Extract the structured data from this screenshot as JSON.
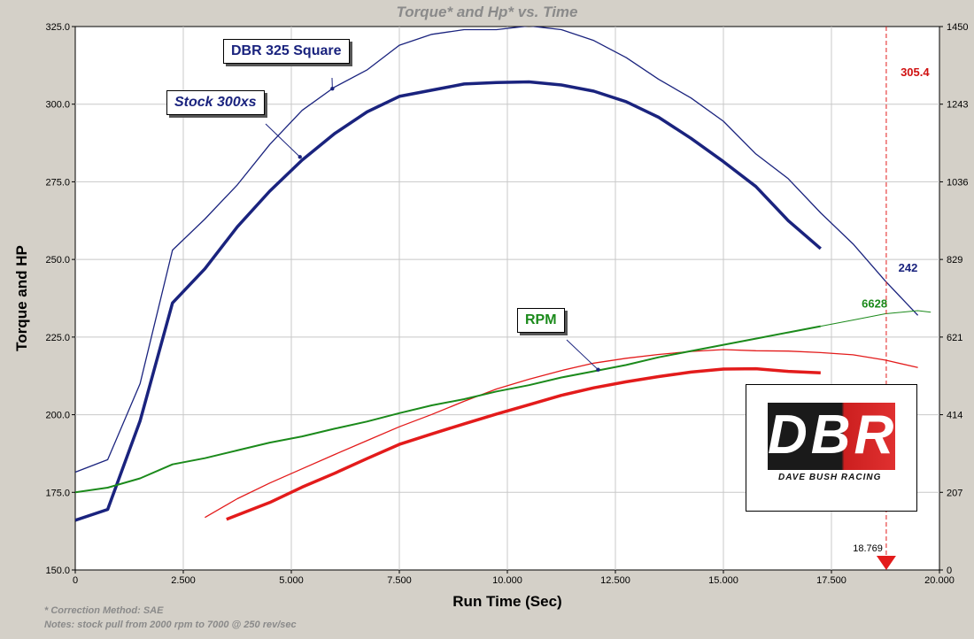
{
  "chart_data": {
    "type": "line",
    "title": "Torque* and Hp* vs. Time",
    "xlabel": "Run Time (Sec)",
    "ylabel": "Torque and HP",
    "xlim": [
      0,
      20
    ],
    "ylim": [
      150,
      325
    ],
    "y2lim": [
      0,
      1450
    ],
    "x_ticks": [
      "0",
      "2.500",
      "5.000",
      "7.500",
      "10.000",
      "12.500",
      "15.000",
      "17.500",
      "20.000"
    ],
    "y_ticks": [
      "150.0",
      "175.0",
      "200.0",
      "225.0",
      "250.0",
      "275.0",
      "300.0",
      "325.0"
    ],
    "y2_ticks": [
      "0",
      "207",
      "414",
      "621",
      "829",
      "1036",
      "1243",
      "1450"
    ],
    "grid": true,
    "series": [
      {
        "name": "DBR 325 Square",
        "kind": "torque",
        "color": "#1a237e",
        "width": 1.3,
        "points": [
          [
            0,
            181.5
          ],
          [
            0.75,
            185.5
          ],
          [
            1.5,
            210
          ],
          [
            2.25,
            253
          ],
          [
            3,
            263
          ],
          [
            3.75,
            274
          ],
          [
            4.5,
            287
          ],
          [
            5.25,
            298
          ],
          [
            6,
            305.5
          ],
          [
            6.75,
            311
          ],
          [
            7.5,
            319
          ],
          [
            8.25,
            322.5
          ],
          [
            9,
            324
          ],
          [
            9.75,
            324
          ],
          [
            10.5,
            325.2
          ],
          [
            11.25,
            324
          ],
          [
            12,
            320.5
          ],
          [
            12.75,
            315
          ],
          [
            13.5,
            308
          ],
          [
            14.25,
            302
          ],
          [
            15,
            294.5
          ],
          [
            15.75,
            284
          ],
          [
            16.5,
            276
          ],
          [
            17.25,
            265
          ],
          [
            18,
            255
          ],
          [
            18.75,
            243
          ],
          [
            19.5,
            232
          ]
        ]
      },
      {
        "name": "Stock 300xs",
        "kind": "torque",
        "color": "#1a237e",
        "width": 3.5,
        "points": [
          [
            0,
            166
          ],
          [
            0.75,
            169.5
          ],
          [
            1.5,
            198
          ],
          [
            2.25,
            236
          ],
          [
            3,
            247
          ],
          [
            3.75,
            260.5
          ],
          [
            4.5,
            272
          ],
          [
            5.25,
            282
          ],
          [
            6,
            290.5
          ],
          [
            6.75,
            297.5
          ],
          [
            7.5,
            302.5
          ],
          [
            8.25,
            304.5
          ],
          [
            9,
            306.5
          ],
          [
            9.75,
            307
          ],
          [
            10.5,
            307.2
          ],
          [
            11.25,
            306.2
          ],
          [
            12,
            304.2
          ],
          [
            12.75,
            300.8
          ],
          [
            13.5,
            295.8
          ],
          [
            14.25,
            289
          ],
          [
            15,
            281.5
          ],
          [
            15.75,
            273.5
          ],
          [
            16.5,
            262.5
          ],
          [
            17.25,
            253.5
          ]
        ]
      },
      {
        "name": "DBR 325 Square HP",
        "kind": "hp",
        "color": "#e31b1b",
        "width": 1.3,
        "points": [
          [
            3.0,
            140
          ],
          [
            3.75,
            190
          ],
          [
            4.5,
            232
          ],
          [
            5.25,
            270
          ],
          [
            6,
            308
          ],
          [
            6.75,
            345
          ],
          [
            7.5,
            382
          ],
          [
            8.25,
            415
          ],
          [
            9,
            450
          ],
          [
            9.75,
            483
          ],
          [
            10.5,
            509
          ],
          [
            11.25,
            532
          ],
          [
            12,
            552
          ],
          [
            12.75,
            565
          ],
          [
            13.5,
            575
          ],
          [
            14.25,
            583
          ],
          [
            15,
            588
          ],
          [
            15.75,
            585
          ],
          [
            16.5,
            584
          ],
          [
            17.25,
            580
          ],
          [
            18,
            574
          ],
          [
            18.75,
            560
          ],
          [
            19.5,
            540
          ]
        ]
      },
      {
        "name": "Stock 300xs HP",
        "kind": "hp",
        "color": "#e31b1b",
        "width": 3.5,
        "points": [
          [
            3.5,
            135
          ],
          [
            4.5,
            180
          ],
          [
            5.25,
            221
          ],
          [
            6,
            258
          ],
          [
            6.75,
            297
          ],
          [
            7.5,
            335
          ],
          [
            8.25,
            363
          ],
          [
            9,
            390
          ],
          [
            9.75,
            416
          ],
          [
            10.5,
            441
          ],
          [
            11.25,
            466
          ],
          [
            12,
            486
          ],
          [
            12.75,
            502
          ],
          [
            13.5,
            516
          ],
          [
            14.25,
            528
          ],
          [
            15,
            536
          ],
          [
            15.75,
            537
          ],
          [
            16.5,
            530
          ],
          [
            17.25,
            526
          ]
        ]
      },
      {
        "name": "RPM",
        "kind": "rpm",
        "color": "#1b8a1b",
        "width": 2,
        "points": [
          [
            0,
            175
          ],
          [
            0.75,
            176.5
          ],
          [
            1.5,
            179.5
          ],
          [
            2.25,
            184
          ],
          [
            3,
            186
          ],
          [
            3.75,
            188.5
          ],
          [
            4.5,
            191
          ],
          [
            5.25,
            193
          ],
          [
            6,
            195.5
          ],
          [
            6.75,
            197.8
          ],
          [
            7.5,
            200.5
          ],
          [
            8.25,
            203
          ],
          [
            9,
            205
          ],
          [
            9.75,
            207.5
          ],
          [
            10.5,
            209.5
          ],
          [
            11.25,
            212
          ],
          [
            12,
            214
          ],
          [
            12.75,
            216
          ],
          [
            13.5,
            218.5
          ],
          [
            14.25,
            220.5
          ],
          [
            15,
            222.5
          ],
          [
            15.75,
            224.5
          ],
          [
            16.5,
            226.5
          ],
          [
            17.25,
            228.5
          ]
        ]
      },
      {
        "name": "RPM DBR",
        "kind": "rpm",
        "color": "#1b8a1b",
        "width": 1,
        "points": [
          [
            17.25,
            228.5
          ],
          [
            18,
            230.5
          ],
          [
            18.75,
            232.5
          ],
          [
            19.5,
            233.5
          ],
          [
            19.8,
            233
          ]
        ]
      }
    ],
    "marker_x": 18.769,
    "marker_label": "18.769",
    "value_labels": [
      {
        "text": "305.4",
        "x": 19.1,
        "y": 309,
        "color": "#d01010"
      },
      {
        "text": "242",
        "x": 19.05,
        "y": 246,
        "color": "#1a237e"
      },
      {
        "text": "6628",
        "x": 18.2,
        "y": 234.5,
        "color": "#1b8a1b"
      }
    ]
  },
  "callouts": {
    "dbr": "DBR 325 Square",
    "stock": "Stock 300xs",
    "rpm": "RPM"
  },
  "logo": {
    "letters": "DBR",
    "subtitle": "DAVE BUSH RACING"
  },
  "footnotes": {
    "line1": "* Correction Method: SAE",
    "line2": "Notes: stock pull from 2000 rpm to 7000 @ 250 rev/sec"
  }
}
